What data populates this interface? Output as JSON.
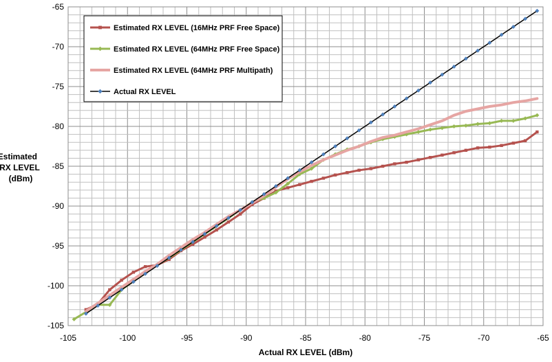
{
  "chart_data": {
    "type": "line",
    "title": "",
    "xlabel": "Actual RX LEVEL (dBm)",
    "ylabel_lines": [
      "Estimated",
      "RX LEVEL",
      "(dBm)"
    ],
    "xlim": [
      -105,
      -65
    ],
    "ylim": [
      -105,
      -65
    ],
    "x_ticks": [
      -105,
      -100,
      -95,
      -90,
      -85,
      -80,
      -75,
      -70,
      -65
    ],
    "y_ticks": [
      -65,
      -70,
      -75,
      -80,
      -85,
      -90,
      -95,
      -100,
      -105
    ],
    "grid": true,
    "legend_position": "top-left",
    "series": [
      {
        "name": "Estimated RX LEVEL (16MHz PRF Free Space)",
        "color": "#b5524e",
        "marker": "square",
        "x": [
          -103.5,
          -102.5,
          -101.5,
          -100.5,
          -99.5,
          -98.5,
          -97.5,
          -96.5,
          -95.5,
          -94.5,
          -93.5,
          -92.5,
          -91.5,
          -90.5,
          -89.5,
          -88.5,
          -87.5,
          -86.5,
          -85.5,
          -84.5,
          -83.5,
          -82.5,
          -81.5,
          -80.5,
          -79.5,
          -78.5,
          -77.5,
          -76.5,
          -75.5,
          -74.5,
          -73.5,
          -72.5,
          -71.5,
          -70.5,
          -69.5,
          -68.5,
          -67.5,
          -66.5,
          -65.5
        ],
        "y": [
          -103.0,
          -102.3,
          -100.5,
          -99.3,
          -98.3,
          -97.6,
          -97.4,
          -96.7,
          -95.6,
          -94.8,
          -93.9,
          -93.0,
          -92.0,
          -91.0,
          -89.8,
          -89.0,
          -88.1,
          -87.7,
          -87.3,
          -86.9,
          -86.5,
          -86.1,
          -85.8,
          -85.5,
          -85.3,
          -85.0,
          -84.7,
          -84.5,
          -84.2,
          -83.9,
          -83.6,
          -83.3,
          -83.0,
          -82.7,
          -82.6,
          -82.4,
          -82.1,
          -81.8,
          -80.7
        ]
      },
      {
        "name": "Estimated RX LEVEL (64MHz PRF Free Space)",
        "color": "#98b954",
        "marker": "diamond",
        "x": [
          -104.5,
          -102.5,
          -101.5,
          -100.5,
          -99.5,
          -98.5,
          -97.5,
          -96.5,
          -95.5,
          -94.5,
          -93.5,
          -92.5,
          -91.5,
          -90.5,
          -89.5,
          -88.5,
          -87.5,
          -86.5,
          -85.5,
          -84.5,
          -83.5,
          -82.5,
          -81.5,
          -80.5,
          -79.5,
          -78.5,
          -77.5,
          -76.5,
          -75.5,
          -74.5,
          -73.5,
          -72.5,
          -71.5,
          -70.5,
          -69.5,
          -68.5,
          -67.5,
          -66.5,
          -65.5
        ],
        "y": [
          -104.2,
          -102.4,
          -102.4,
          -100.5,
          -99.4,
          -98.3,
          -97.4,
          -96.5,
          -95.5,
          -94.5,
          -93.5,
          -92.5,
          -91.5,
          -90.5,
          -89.5,
          -89.0,
          -88.3,
          -87.2,
          -86.0,
          -85.3,
          -84.2,
          -83.5,
          -82.9,
          -82.5,
          -82.0,
          -81.6,
          -81.3,
          -81.0,
          -80.7,
          -80.4,
          -80.2,
          -80.0,
          -79.9,
          -79.7,
          -79.6,
          -79.3,
          -79.3,
          -79.0,
          -78.6
        ]
      },
      {
        "name": "Estimated RX LEVEL (64MHz PRF Multipath)",
        "color": "#e6a5a3",
        "marker": "none",
        "x": [
          -103.5,
          -102.5,
          -101.5,
          -100.5,
          -99.5,
          -98.5,
          -97.5,
          -96.5,
          -95.5,
          -94.5,
          -93.5,
          -92.5,
          -91.5,
          -90.5,
          -89.5,
          -88.5,
          -87.5,
          -86.5,
          -85.5,
          -84.5,
          -83.5,
          -82.5,
          -81.5,
          -80.5,
          -79.5,
          -78.5,
          -77.5,
          -76.5,
          -75.5,
          -74.5,
          -73.5,
          -72.5,
          -71.5,
          -70.5,
          -69.5,
          -68.5,
          -67.5,
          -66.5,
          -65.5
        ],
        "y": [
          -103.2,
          -102.2,
          -101.2,
          -100.2,
          -99.2,
          -98.2,
          -97.3,
          -96.2,
          -95.2,
          -94.2,
          -93.3,
          -92.3,
          -91.3,
          -90.5,
          -89.6,
          -88.7,
          -87.6,
          -86.6,
          -85.7,
          -84.9,
          -84.2,
          -83.6,
          -83.0,
          -82.5,
          -81.9,
          -81.4,
          -81.1,
          -80.7,
          -80.3,
          -79.8,
          -79.3,
          -78.6,
          -78.1,
          -77.8,
          -77.5,
          -77.3,
          -77.0,
          -76.8,
          -76.5
        ]
      },
      {
        "name": "Actual RX LEVEL",
        "color": "#000000",
        "marker_color": "#4f81bd",
        "marker": "diamond",
        "x": [
          -103.5,
          -102.5,
          -101.5,
          -100.5,
          -99.5,
          -98.5,
          -97.5,
          -96.5,
          -95.5,
          -94.5,
          -93.5,
          -92.5,
          -91.5,
          -90.5,
          -89.5,
          -88.5,
          -87.5,
          -86.5,
          -85.5,
          -84.5,
          -83.5,
          -82.5,
          -81.5,
          -80.5,
          -79.5,
          -78.5,
          -77.5,
          -76.5,
          -75.5,
          -74.5,
          -73.5,
          -72.5,
          -71.5,
          -70.5,
          -69.5,
          -68.5,
          -67.5,
          -66.5,
          -65.5
        ],
        "y": [
          -103.5,
          -102.5,
          -101.5,
          -100.5,
          -99.5,
          -98.5,
          -97.5,
          -96.5,
          -95.5,
          -94.5,
          -93.5,
          -92.5,
          -91.5,
          -90.5,
          -89.5,
          -88.5,
          -87.5,
          -86.5,
          -85.5,
          -84.5,
          -83.5,
          -82.5,
          -81.5,
          -80.5,
          -79.5,
          -78.5,
          -77.5,
          -76.5,
          -75.5,
          -74.5,
          -73.5,
          -72.5,
          -71.5,
          -70.5,
          -69.5,
          -68.5,
          -67.5,
          -66.5,
          -65.5
        ]
      }
    ]
  }
}
